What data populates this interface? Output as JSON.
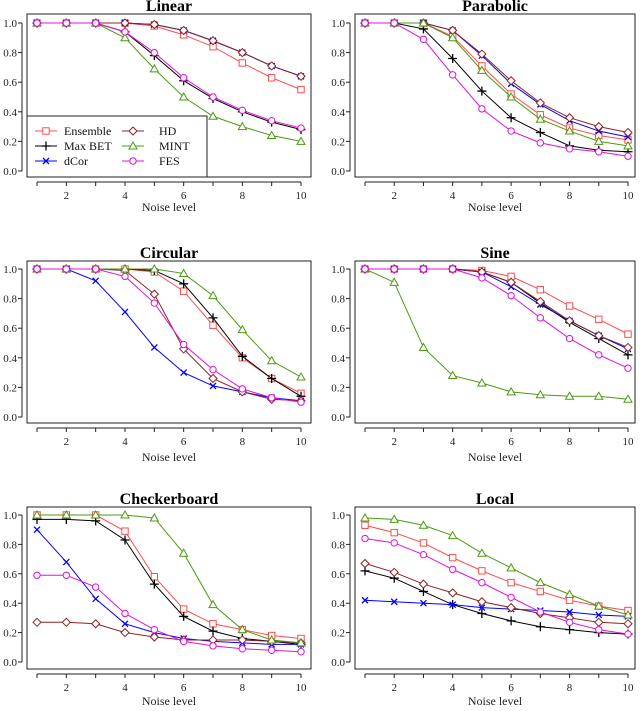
{
  "chart_data": {
    "layout": "3x2 grid",
    "shared": {
      "type": "line",
      "xlabel": "Noise level",
      "x": [
        1,
        2,
        3,
        4,
        5,
        6,
        7,
        8,
        9,
        10
      ],
      "xticks": [
        2,
        4,
        6,
        8,
        10
      ],
      "yticks": [
        "0.0",
        "0.2",
        "0.4",
        "0.6",
        "0.8",
        "1.0"
      ],
      "xlim": [
        1,
        10
      ],
      "ylim": [
        0,
        1
      ],
      "grid": false,
      "legend_placement": "bottom-left of first panel",
      "series_styles": [
        {
          "name": "Ensemble",
          "color": "#ff4d4d",
          "marker": "square"
        },
        {
          "name": "Max BET",
          "color": "#000000",
          "marker": "plus"
        },
        {
          "name": "dCor",
          "color": "#0000ff",
          "marker": "x"
        },
        {
          "name": "HD",
          "color": "#8b2323",
          "marker": "diamond"
        },
        {
          "name": "MINT",
          "color": "#4d9a10",
          "marker": "triangle"
        },
        {
          "name": "FES",
          "color": "#e010e0",
          "marker": "circle"
        }
      ]
    },
    "panels": [
      {
        "title": "Linear",
        "series": [
          {
            "name": "Ensemble",
            "values": [
              1,
              1,
              1,
              1,
              0.98,
              0.92,
              0.84,
              0.73,
              0.63,
              0.55
            ]
          },
          {
            "name": "Max BET",
            "values": [
              1,
              1,
              1,
              0.94,
              0.78,
              0.61,
              0.49,
              0.4,
              0.33,
              0.28
            ]
          },
          {
            "name": "dCor",
            "values": [
              1,
              1,
              1,
              1,
              0.99,
              0.95,
              0.88,
              0.8,
              0.71,
              0.64
            ]
          },
          {
            "name": "HD",
            "values": [
              1,
              1,
              1,
              1,
              0.99,
              0.95,
              0.88,
              0.8,
              0.71,
              0.64
            ]
          },
          {
            "name": "MINT",
            "values": [
              1,
              1,
              1,
              0.9,
              0.69,
              0.5,
              0.37,
              0.3,
              0.24,
              0.2
            ]
          },
          {
            "name": "FES",
            "values": [
              1,
              1,
              1,
              0.94,
              0.8,
              0.63,
              0.5,
              0.41,
              0.34,
              0.29
            ]
          }
        ]
      },
      {
        "title": "Parabolic",
        "series": [
          {
            "name": "Ensemble",
            "values": [
              1,
              1,
              1,
              0.91,
              0.71,
              0.52,
              0.38,
              0.29,
              0.24,
              0.21
            ]
          },
          {
            "name": "Max BET",
            "values": [
              1,
              1,
              0.96,
              0.76,
              0.54,
              0.36,
              0.26,
              0.17,
              0.14,
              0.13
            ]
          },
          {
            "name": "dCor",
            "values": [
              1,
              1,
              1,
              0.95,
              0.78,
              0.59,
              0.45,
              0.34,
              0.27,
              0.23
            ]
          },
          {
            "name": "HD",
            "values": [
              1,
              1,
              1,
              0.95,
              0.79,
              0.61,
              0.46,
              0.36,
              0.3,
              0.26
            ]
          },
          {
            "name": "MINT",
            "values": [
              1,
              1,
              1,
              0.9,
              0.68,
              0.5,
              0.35,
              0.27,
              0.2,
              0.17
            ]
          },
          {
            "name": "FES",
            "values": [
              1,
              1,
              0.89,
              0.65,
              0.42,
              0.27,
              0.19,
              0.15,
              0.13,
              0.1
            ]
          }
        ]
      },
      {
        "title": "Circular",
        "series": [
          {
            "name": "Ensemble",
            "values": [
              1,
              1,
              1,
              1,
              0.98,
              0.85,
              0.62,
              0.4,
              0.26,
              0.16
            ]
          },
          {
            "name": "Max BET",
            "values": [
              1,
              1,
              1,
              1,
              0.99,
              0.9,
              0.67,
              0.41,
              0.26,
              0.14
            ]
          },
          {
            "name": "dCor",
            "values": [
              1,
              1,
              0.92,
              0.71,
              0.47,
              0.3,
              0.21,
              0.17,
              0.13,
              0.11
            ]
          },
          {
            "name": "HD",
            "values": [
              1,
              1,
              1,
              0.99,
              0.83,
              0.46,
              0.26,
              0.17,
              0.12,
              0.11
            ]
          },
          {
            "name": "MINT",
            "values": [
              1,
              1,
              1,
              1,
              1,
              0.97,
              0.82,
              0.59,
              0.38,
              0.27
            ]
          },
          {
            "name": "FES",
            "values": [
              1,
              1,
              1,
              0.95,
              0.77,
              0.49,
              0.32,
              0.19,
              0.13,
              0.1
            ]
          }
        ]
      },
      {
        "title": "Sine",
        "series": [
          {
            "name": "Ensemble",
            "values": [
              1,
              1,
              1,
              1,
              0.99,
              0.95,
              0.86,
              0.75,
              0.66,
              0.56
            ]
          },
          {
            "name": "Max BET",
            "values": [
              1,
              1,
              1,
              1,
              0.98,
              0.91,
              0.77,
              0.64,
              0.53,
              0.42
            ]
          },
          {
            "name": "dCor",
            "values": [
              1,
              1,
              1,
              1,
              0.98,
              0.88,
              0.76,
              0.65,
              0.55,
              0.46
            ]
          },
          {
            "name": "HD",
            "values": [
              1,
              1,
              1,
              1,
              0.98,
              0.91,
              0.78,
              0.65,
              0.55,
              0.47
            ]
          },
          {
            "name": "MINT",
            "values": [
              1,
              0.91,
              0.47,
              0.28,
              0.23,
              0.17,
              0.15,
              0.14,
              0.14,
              0.12
            ]
          },
          {
            "name": "FES",
            "values": [
              1,
              1,
              1,
              1,
              0.94,
              0.82,
              0.67,
              0.53,
              0.42,
              0.33
            ]
          }
        ]
      },
      {
        "title": "Checkerboard",
        "series": [
          {
            "name": "Ensemble",
            "values": [
              1,
              1,
              1,
              0.89,
              0.58,
              0.36,
              0.26,
              0.22,
              0.18,
              0.16
            ]
          },
          {
            "name": "Max BET",
            "values": [
              0.97,
              0.97,
              0.96,
              0.83,
              0.53,
              0.31,
              0.21,
              0.16,
              0.14,
              0.12
            ]
          },
          {
            "name": "dCor",
            "values": [
              0.9,
              0.68,
              0.43,
              0.26,
              0.2,
              0.16,
              0.14,
              0.13,
              0.12,
              0.12
            ]
          },
          {
            "name": "HD",
            "values": [
              0.27,
              0.27,
              0.26,
              0.2,
              0.17,
              0.15,
              0.15,
              0.15,
              0.14,
              0.13
            ]
          },
          {
            "name": "MINT",
            "values": [
              1,
              1,
              1,
              1,
              0.98,
              0.74,
              0.39,
              0.22,
              0.15,
              0.13
            ]
          },
          {
            "name": "FES",
            "values": [
              0.59,
              0.59,
              0.51,
              0.33,
              0.22,
              0.14,
              0.11,
              0.09,
              0.08,
              0.07
            ]
          }
        ]
      },
      {
        "title": "Local",
        "series": [
          {
            "name": "Ensemble",
            "values": [
              0.93,
              0.88,
              0.81,
              0.71,
              0.62,
              0.54,
              0.48,
              0.42,
              0.38,
              0.35
            ]
          },
          {
            "name": "Max BET",
            "values": [
              0.62,
              0.57,
              0.48,
              0.39,
              0.33,
              0.28,
              0.24,
              0.22,
              0.2,
              0.19
            ]
          },
          {
            "name": "dCor",
            "values": [
              0.42,
              0.41,
              0.4,
              0.39,
              0.37,
              0.36,
              0.35,
              0.34,
              0.32,
              0.31
            ]
          },
          {
            "name": "HD",
            "values": [
              0.67,
              0.61,
              0.53,
              0.47,
              0.41,
              0.37,
              0.33,
              0.3,
              0.27,
              0.26
            ]
          },
          {
            "name": "MINT",
            "values": [
              0.98,
              0.97,
              0.93,
              0.86,
              0.74,
              0.64,
              0.54,
              0.46,
              0.38,
              0.32
            ]
          },
          {
            "name": "FES",
            "values": [
              0.84,
              0.81,
              0.73,
              0.63,
              0.54,
              0.44,
              0.34,
              0.27,
              0.22,
              0.19
            ]
          }
        ]
      }
    ]
  }
}
